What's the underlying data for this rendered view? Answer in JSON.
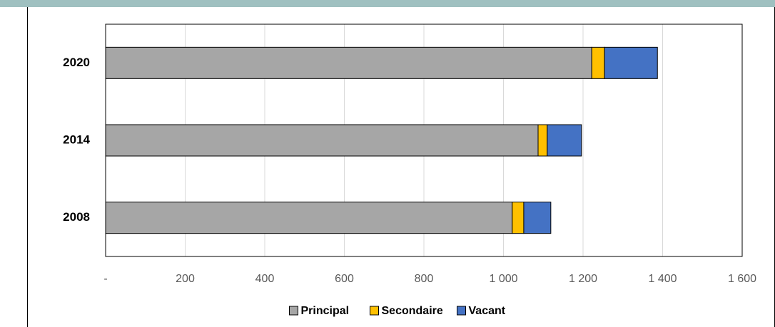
{
  "chart_data": {
    "type": "bar",
    "orientation": "horizontal",
    "stacked": true,
    "categories": [
      "2020",
      "2014",
      "2008"
    ],
    "series": [
      {
        "name": "Principal",
        "color": "#a6a6a6",
        "values": [
          1222,
          1087,
          1022
        ]
      },
      {
        "name": "Secondaire",
        "color": "#ffc000",
        "values": [
          32,
          23,
          29
        ]
      },
      {
        "name": "Vacant",
        "color": "#4472c4",
        "values": [
          133,
          86,
          68
        ]
      }
    ],
    "xlim": [
      0,
      1600
    ],
    "xticks": [
      {
        "value": 0,
        "label": "-"
      },
      200,
      400,
      600,
      800,
      {
        "value": 1000,
        "label": "1 000"
      },
      {
        "value": 1200,
        "label": "1 200"
      },
      {
        "value": 1400,
        "label": "1 400"
      },
      {
        "value": 1600,
        "label": "1 600"
      }
    ],
    "grid": true,
    "legend": "bottom"
  }
}
